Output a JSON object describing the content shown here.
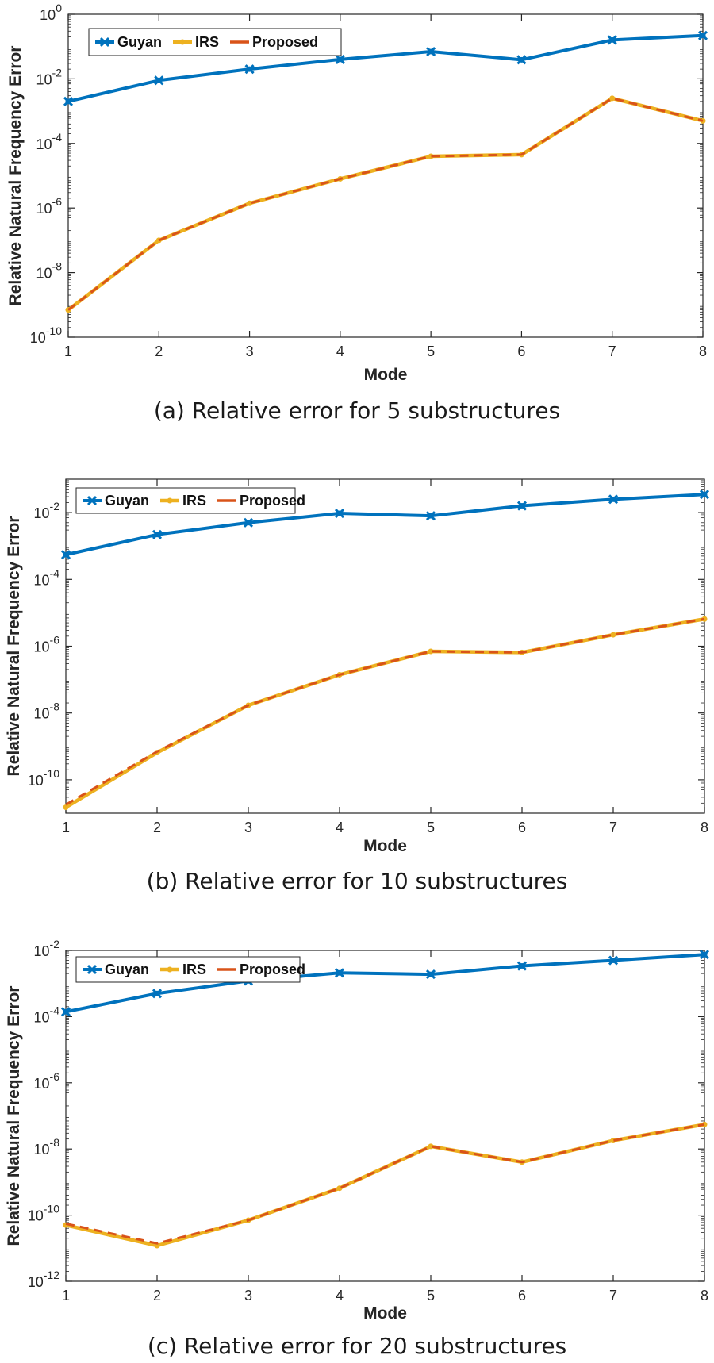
{
  "figure": {
    "y_axis_label": "Relative Natural Frequency Error",
    "x_axis_label": "Mode"
  },
  "colors": {
    "guyan": "#0072BD",
    "irs": "#EDB120",
    "proposed": "#D95319"
  },
  "chart_data": [
    {
      "type": "line",
      "caption": "(a) Relative error for 5 substructures",
      "xlabel": "Mode",
      "ylabel": "Relative Natural Frequency Error",
      "yscale": "log",
      "xlim": [
        1,
        8
      ],
      "ylim": [
        1e-10,
        1
      ],
      "x_ticks": [
        "1",
        "2",
        "3",
        "4",
        "5",
        "6",
        "7",
        "8"
      ],
      "y_ticks": [
        {
          "value": 1e-10,
          "base": "10",
          "exp": "-10"
        },
        {
          "value": 1e-08,
          "base": "10",
          "exp": "-8"
        },
        {
          "value": 1e-06,
          "base": "10",
          "exp": "-6"
        },
        {
          "value": 0.0001,
          "base": "10",
          "exp": "-4"
        },
        {
          "value": 0.01,
          "base": "10",
          "exp": "-2"
        },
        {
          "value": 1,
          "base": "10",
          "exp": "0"
        }
      ],
      "legend_position": "top-left",
      "x": [
        1,
        2,
        3,
        4,
        5,
        6,
        7,
        8
      ],
      "series": [
        {
          "name": "Guyan",
          "values": [
            0.002,
            0.009,
            0.02,
            0.04,
            0.07,
            0.039,
            0.16,
            0.22
          ]
        },
        {
          "name": "IRS",
          "values": [
            7e-10,
            1e-07,
            1.4e-06,
            8e-06,
            4e-05,
            4.5e-05,
            0.0025,
            0.0005
          ]
        },
        {
          "name": "Proposed",
          "values": [
            7e-10,
            1e-07,
            1.4e-06,
            8e-06,
            4e-05,
            4.5e-05,
            0.0025,
            0.0005
          ]
        }
      ]
    },
    {
      "type": "line",
      "caption": "(b) Relative error for 10 substructures",
      "xlabel": "Mode",
      "ylabel": "Relative Natural Frequency Error",
      "yscale": "log",
      "xlim": [
        1,
        8
      ],
      "ylim": [
        1e-11,
        0.1
      ],
      "x_ticks": [
        "1",
        "2",
        "3",
        "4",
        "5",
        "6",
        "7",
        "8"
      ],
      "y_ticks": [
        {
          "value": 1e-10,
          "base": "10",
          "exp": "-10"
        },
        {
          "value": 1e-08,
          "base": "10",
          "exp": "-8"
        },
        {
          "value": 1e-06,
          "base": "10",
          "exp": "-6"
        },
        {
          "value": 0.0001,
          "base": "10",
          "exp": "-4"
        },
        {
          "value": 0.01,
          "base": "10",
          "exp": "-2"
        }
      ],
      "legend_position": "top-left",
      "x": [
        1,
        2,
        3,
        4,
        5,
        6,
        7,
        8
      ],
      "series": [
        {
          "name": "Guyan",
          "values": [
            0.00055,
            0.0022,
            0.005,
            0.0095,
            0.008,
            0.016,
            0.025,
            0.035
          ]
        },
        {
          "name": "IRS",
          "values": [
            1.5e-11,
            6.5e-10,
            1.7e-08,
            1.4e-07,
            7e-07,
            6.5e-07,
            2.2e-06,
            6.5e-06
          ]
        },
        {
          "name": "Proposed",
          "values": [
            1.8e-11,
            7e-10,
            1.7e-08,
            1.4e-07,
            7e-07,
            6.5e-07,
            2.2e-06,
            6.5e-06
          ]
        }
      ]
    },
    {
      "type": "line",
      "caption": "(c) Relative error for 20 substructures",
      "xlabel": "Mode",
      "ylabel": "Relative Natural Frequency Error",
      "yscale": "log",
      "xlim": [
        1,
        8
      ],
      "ylim": [
        1e-12,
        0.01
      ],
      "x_ticks": [
        "1",
        "2",
        "3",
        "4",
        "5",
        "6",
        "7",
        "8"
      ],
      "y_ticks": [
        {
          "value": 1e-12,
          "base": "10",
          "exp": "-12"
        },
        {
          "value": 1e-10,
          "base": "10",
          "exp": "-10"
        },
        {
          "value": 1e-08,
          "base": "10",
          "exp": "-8"
        },
        {
          "value": 1e-06,
          "base": "10",
          "exp": "-6"
        },
        {
          "value": 0.0001,
          "base": "10",
          "exp": "-4"
        },
        {
          "value": 0.01,
          "base": "10",
          "exp": "-2"
        }
      ],
      "legend_position": "top-left",
      "x": [
        1,
        2,
        3,
        4,
        5,
        6,
        7,
        8
      ],
      "series": [
        {
          "name": "Guyan",
          "values": [
            0.00014,
            0.0005,
            0.0012,
            0.0021,
            0.0019,
            0.0034,
            0.005,
            0.0075
          ]
        },
        {
          "name": "IRS",
          "values": [
            5e-11,
            1.2e-11,
            7e-11,
            6.5e-10,
            1.2e-08,
            4e-09,
            1.8e-08,
            5.5e-08
          ]
        },
        {
          "name": "Proposed",
          "values": [
            5.5e-11,
            1.4e-11,
            7e-11,
            6.5e-10,
            1.2e-08,
            4e-09,
            1.8e-08,
            5.5e-08
          ]
        }
      ]
    }
  ]
}
